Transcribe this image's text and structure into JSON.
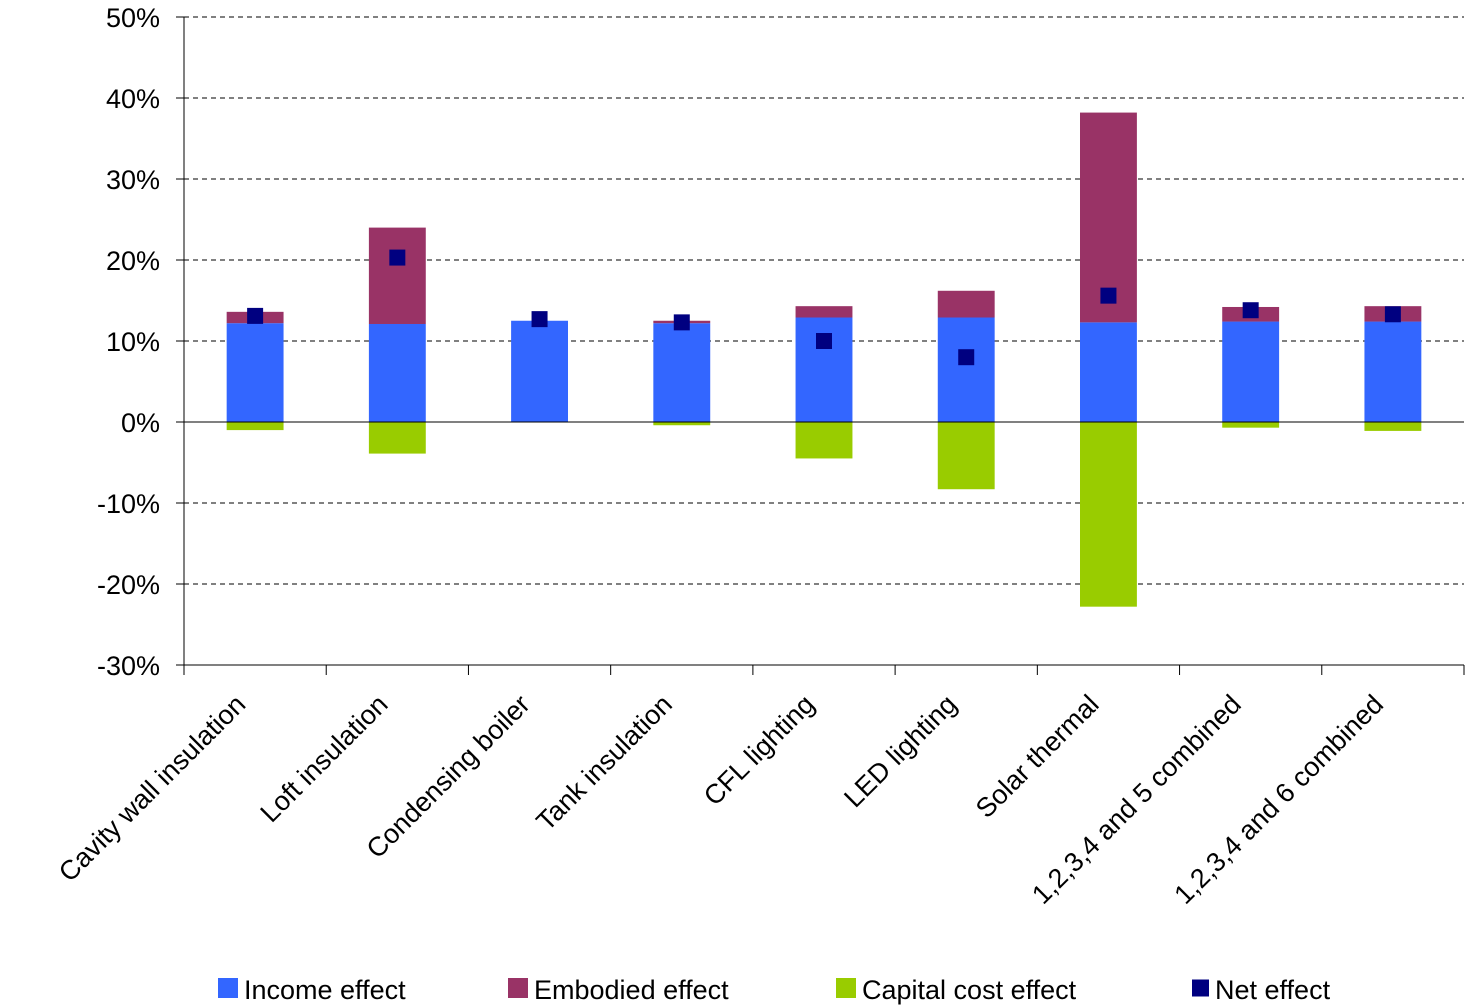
{
  "chart_data": {
    "type": "bar",
    "stacked": true,
    "categories": [
      "Cavity wall insulation",
      "Loft insulation",
      "Condensing boiler",
      "Tank insulation",
      "CFL lighting",
      "LED lighting",
      "Solar thermal",
      "1,2,3,4 and 5 combined",
      "1,2,3,4 and 6 combined"
    ],
    "series": [
      {
        "name": "Income effect",
        "kind": "bar",
        "color": "#3366ff",
        "values": [
          12.2,
          12.1,
          12.5,
          12.2,
          12.9,
          12.9,
          12.3,
          12.4,
          12.4
        ]
      },
      {
        "name": "Embodied effect",
        "kind": "bar",
        "color": "#993366",
        "values": [
          1.4,
          11.9,
          0.0,
          0.3,
          1.4,
          3.3,
          25.9,
          1.8,
          1.9
        ]
      },
      {
        "name": "Capital cost effect",
        "kind": "bar",
        "color": "#99cc00",
        "values": [
          -1.0,
          -3.9,
          0.0,
          -0.4,
          -4.5,
          -8.3,
          -22.8,
          -0.7,
          -1.1
        ]
      },
      {
        "name": "Net effect",
        "kind": "marker",
        "color": "#000080",
        "values": [
          13.1,
          20.3,
          12.7,
          12.3,
          10.0,
          8.0,
          15.6,
          13.8,
          13.3
        ]
      }
    ],
    "yticks": [
      "50%",
      "40%",
      "30%",
      "20%",
      "10%",
      "0%",
      "-10%",
      "-20%",
      "-30%"
    ],
    "ylim": [
      -30,
      50
    ],
    "title": "",
    "xlabel": "",
    "ylabel": "",
    "grid": "horizontal dashed",
    "legend_position": "bottom"
  }
}
